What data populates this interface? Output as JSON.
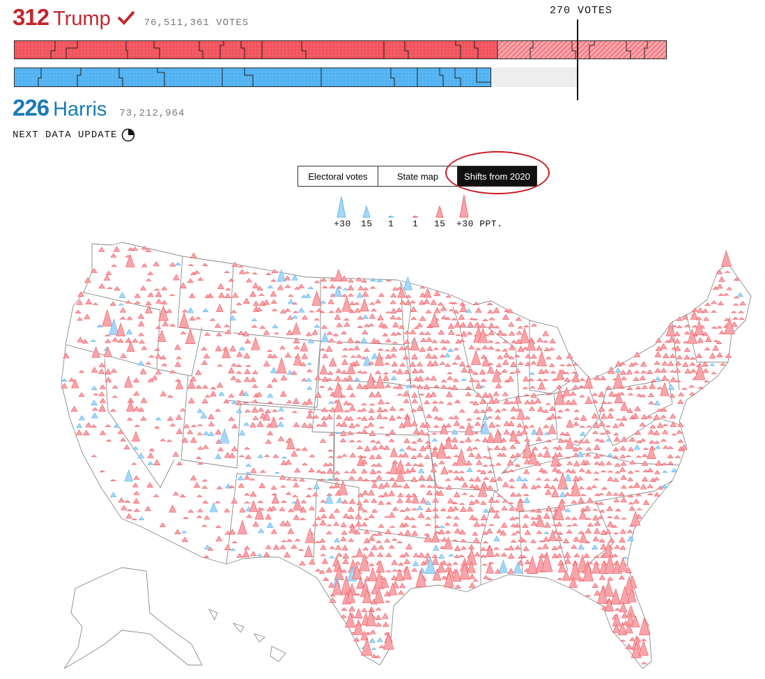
{
  "trump": {
    "electoral_votes": "312",
    "name": "Trump",
    "popular_votes": "76,511,361 VOTES",
    "color": "#f2525c"
  },
  "harris": {
    "electoral_votes": "226",
    "name": "Harris",
    "popular_votes": "73,212,964",
    "color": "#4fb1f2"
  },
  "threshold_label": "270 VOTES",
  "update_label": "NEXT DATA UPDATE",
  "tabs": [
    {
      "label": "Electoral votes",
      "active": false
    },
    {
      "label": "State map",
      "active": false
    },
    {
      "label": "Shifts from 2020",
      "active": true
    }
  ],
  "legend": {
    "labels": [
      "+30",
      "15",
      "1",
      "1",
      "15",
      "+30 PPT."
    ]
  },
  "colors": {
    "rep": "#f2525c",
    "dem": "#4fb1f2",
    "highlight": "#c81a20"
  }
}
